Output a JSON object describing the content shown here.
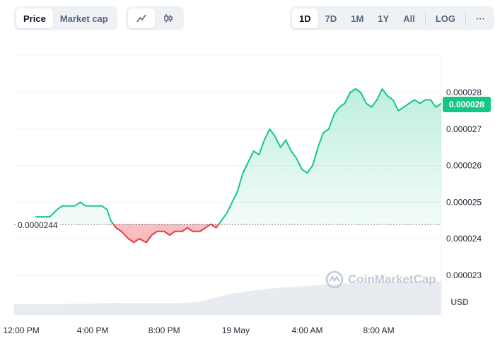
{
  "toolbar": {
    "metric_tabs": [
      {
        "label": "Price",
        "active": true
      },
      {
        "label": "Market cap",
        "active": false
      }
    ],
    "chart_type": [
      {
        "icon": "line-chart-icon",
        "active": true
      },
      {
        "icon": "candlestick-icon",
        "active": false
      }
    ],
    "ranges": [
      {
        "label": "1D",
        "active": true
      },
      {
        "label": "7D",
        "active": false
      },
      {
        "label": "1M",
        "active": false
      },
      {
        "label": "1Y",
        "active": false
      },
      {
        "label": "All",
        "active": false
      }
    ],
    "log_label": "LOG",
    "more_label": "···"
  },
  "current_price_label": "0.000028",
  "reference_price_label": "0.0000244",
  "watermark": "CoinMarketCap",
  "colors": {
    "up": "#16c784",
    "down": "#ea3943",
    "up_fill_top": "#c8f2dd",
    "grid": "#eff2f5",
    "volume": "#e8ebf0"
  },
  "chart_data": {
    "type": "line",
    "currency": "USD",
    "reference_value": 2.44e-05,
    "ylim": [
      2.24e-05,
      2.9e-05
    ],
    "yticks": [
      "0.000028",
      "0.000027",
      "0.000026",
      "0.000025",
      "0.000024",
      "0.000023"
    ],
    "ytick_values": [
      2.8e-05,
      2.7e-05,
      2.6e-05,
      2.5e-05,
      2.4e-05,
      2.3e-05
    ],
    "xlim": [
      11.6,
      35.5
    ],
    "xticks": [
      "12:00 PM",
      "4:00 PM",
      "8:00 PM",
      "19 May",
      "4:00 AM",
      "8:00 AM"
    ],
    "xtick_values": [
      12,
      16,
      20,
      24,
      28,
      32
    ],
    "x_unit": "hours since 18 May 00:00",
    "series": [
      {
        "x": [
          12.8,
          13.3,
          13.6,
          14.0,
          14.3,
          14.6,
          15.0,
          15.3,
          15.6,
          16.0,
          16.3,
          16.5,
          16.8,
          17.0,
          17.3,
          17.6,
          18.0,
          18.3,
          18.6,
          19.0,
          19.3,
          19.6,
          20.0,
          20.3,
          20.6,
          21.0,
          21.3,
          21.6,
          22.0,
          22.3,
          22.6,
          22.9,
          23.2,
          23.5,
          23.8,
          24.1,
          24.4,
          24.7,
          25.0,
          25.3,
          25.6,
          25.9,
          26.2,
          26.5,
          26.8,
          27.1,
          27.4,
          27.7,
          28.0,
          28.3,
          28.6,
          28.9,
          29.2,
          29.5,
          29.8,
          30.1,
          30.4,
          30.7,
          31.0,
          31.3,
          31.6,
          31.9,
          32.2,
          32.5,
          32.8,
          33.1,
          33.4,
          33.7,
          34.0,
          34.3,
          34.6,
          34.9,
          35.2,
          35.5
        ],
        "values": [
          2.46e-05,
          2.46e-05,
          2.46e-05,
          2.48e-05,
          2.49e-05,
          2.49e-05,
          2.49e-05,
          2.5e-05,
          2.49e-05,
          2.49e-05,
          2.49e-05,
          2.49e-05,
          2.48e-05,
          2.45e-05,
          2.43e-05,
          2.42e-05,
          2.4e-05,
          2.39e-05,
          2.4e-05,
          2.39e-05,
          2.41e-05,
          2.42e-05,
          2.42e-05,
          2.41e-05,
          2.42e-05,
          2.42e-05,
          2.43e-05,
          2.42e-05,
          2.42e-05,
          2.43e-05,
          2.44e-05,
          2.43e-05,
          2.45e-05,
          2.47e-05,
          2.5e-05,
          2.53e-05,
          2.58e-05,
          2.61e-05,
          2.64e-05,
          2.63e-05,
          2.67e-05,
          2.7e-05,
          2.68e-05,
          2.65e-05,
          2.67e-05,
          2.64e-05,
          2.62e-05,
          2.59e-05,
          2.58e-05,
          2.6e-05,
          2.65e-05,
          2.69e-05,
          2.7e-05,
          2.74e-05,
          2.76e-05,
          2.77e-05,
          2.8e-05,
          2.81e-05,
          2.8e-05,
          2.77e-05,
          2.76e-05,
          2.78e-05,
          2.81e-05,
          2.79e-05,
          2.78e-05,
          2.75e-05,
          2.76e-05,
          2.77e-05,
          2.78e-05,
          2.77e-05,
          2.78e-05,
          2.78e-05,
          2.76e-05,
          2.77e-05
        ]
      }
    ],
    "volume": [
      0.28,
      0.28,
      0.28,
      0.28,
      0.28,
      0.29,
      0.29,
      0.29,
      0.29,
      0.3,
      0.3,
      0.31,
      0.31,
      0.31,
      0.32,
      0.31,
      0.31,
      0.31,
      0.31,
      0.31,
      0.31,
      0.31,
      0.31,
      0.31,
      0.31,
      0.31,
      0.32,
      0.33,
      0.35,
      0.38,
      0.42,
      0.46,
      0.5,
      0.53,
      0.56,
      0.58,
      0.6,
      0.62,
      0.64,
      0.66,
      0.67,
      0.69,
      0.7,
      0.71,
      0.72,
      0.73,
      0.74,
      0.75,
      0.76,
      0.77,
      0.78,
      0.79,
      0.8,
      0.81,
      0.82,
      0.83,
      0.83,
      0.84,
      0.84,
      0.85,
      0.85,
      0.86,
      0.86,
      0.86,
      0.87,
      0.87,
      0.87,
      0.88,
      0.88,
      0.88,
      0.88,
      0.88,
      0.88,
      0.88
    ],
    "grid": true
  }
}
